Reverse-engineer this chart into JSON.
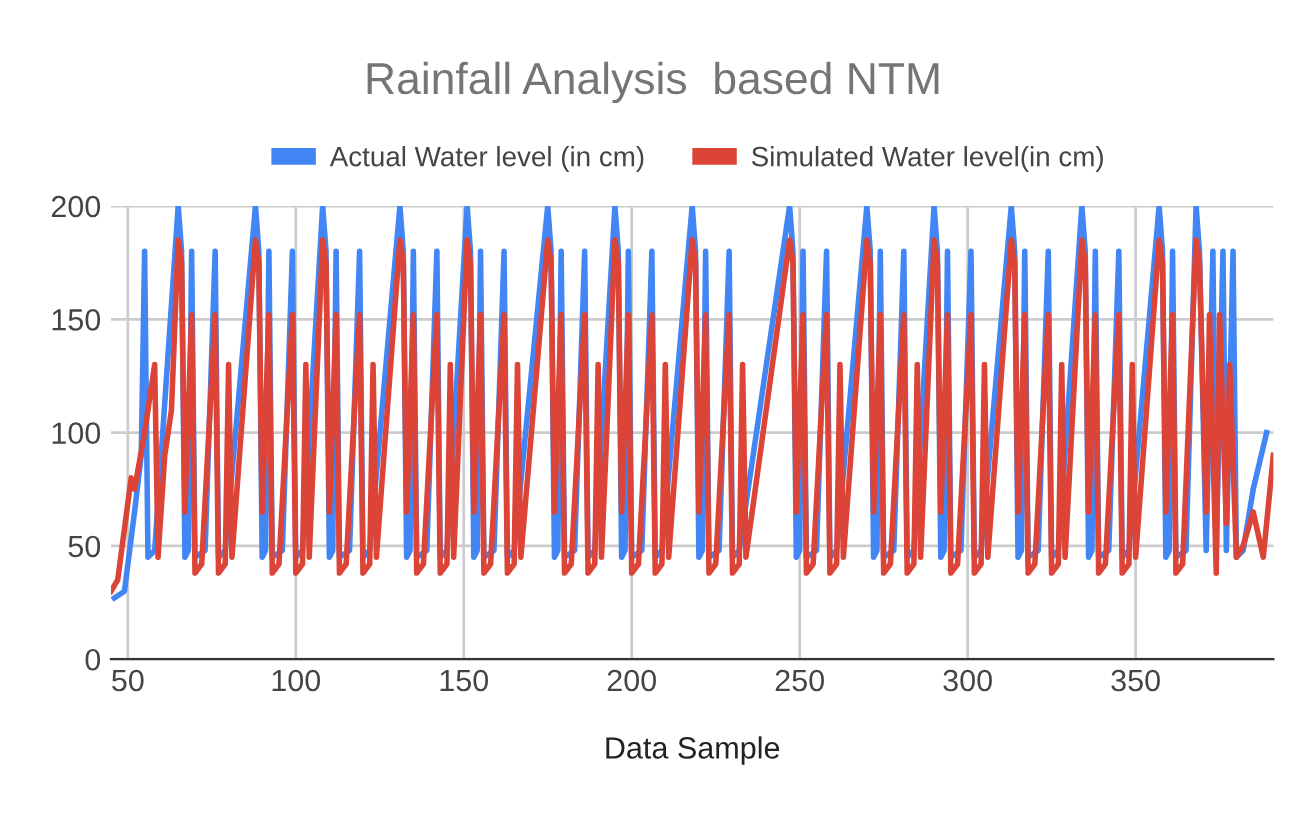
{
  "chart_data": {
    "type": "line",
    "title": "Rainfall Analysis  based NTM",
    "xlabel": "Data Sample",
    "xlim": [
      45,
      391
    ],
    "xticks": [
      50,
      100,
      150,
      200,
      250,
      300,
      350
    ],
    "ylim": [
      0,
      200
    ],
    "yticks": [
      0,
      50,
      100,
      150,
      200
    ],
    "grid": true,
    "legend": "top",
    "marker": "none",
    "line_style": "solid",
    "series": [
      {
        "name": "Actual Water level (in cm)",
        "color": "#4285f4",
        "x": [
          46,
          49,
          52,
          54,
          55,
          56,
          58,
          65,
          66,
          67,
          68,
          69,
          70,
          73,
          76,
          77,
          79,
          88,
          89,
          90,
          91,
          92,
          93,
          96,
          99,
          100,
          102,
          108,
          109,
          110,
          111,
          112,
          113,
          116,
          119,
          120,
          122,
          131,
          132,
          133,
          134,
          135,
          136,
          139,
          142,
          143,
          145,
          151,
          152,
          153,
          154,
          155,
          156,
          159,
          162,
          163,
          165,
          175,
          176,
          177,
          178,
          179,
          180,
          183,
          186,
          187,
          189,
          195,
          196,
          197,
          198,
          199,
          200,
          203,
          206,
          207,
          209,
          218,
          219,
          220,
          221,
          222,
          223,
          226,
          229,
          230,
          232,
          247,
          248,
          249,
          250,
          251,
          252,
          255,
          258,
          259,
          261,
          270,
          271,
          272,
          273,
          274,
          275,
          278,
          281,
          282,
          284,
          290,
          291,
          292,
          293,
          294,
          295,
          298,
          301,
          302,
          304,
          313,
          314,
          315,
          316,
          317,
          318,
          321,
          324,
          325,
          327,
          334,
          335,
          336,
          337,
          338,
          339,
          342,
          345,
          346,
          348,
          357,
          358,
          359,
          360,
          361,
          362,
          365,
          368,
          369,
          371,
          373,
          374,
          376,
          377,
          379,
          380,
          382,
          385,
          389
        ],
        "values": [
          27,
          30,
          65,
          90,
          180,
          45,
          48,
          200,
          180,
          45,
          48,
          180,
          45,
          48,
          180,
          45,
          48,
          200,
          180,
          45,
          48,
          180,
          45,
          48,
          180,
          45,
          48,
          200,
          180,
          45,
          48,
          180,
          45,
          48,
          180,
          45,
          48,
          200,
          180,
          45,
          48,
          180,
          45,
          48,
          180,
          45,
          48,
          200,
          180,
          45,
          48,
          180,
          45,
          48,
          180,
          45,
          48,
          200,
          180,
          45,
          48,
          180,
          45,
          48,
          180,
          45,
          48,
          200,
          180,
          45,
          48,
          180,
          45,
          48,
          180,
          45,
          48,
          200,
          180,
          45,
          48,
          180,
          45,
          48,
          180,
          45,
          48,
          200,
          180,
          45,
          48,
          180,
          45,
          48,
          180,
          45,
          48,
          200,
          180,
          45,
          48,
          180,
          45,
          48,
          180,
          45,
          48,
          200,
          180,
          45,
          48,
          180,
          45,
          48,
          180,
          45,
          48,
          200,
          180,
          45,
          48,
          180,
          45,
          48,
          180,
          45,
          48,
          200,
          180,
          45,
          48,
          180,
          45,
          48,
          180,
          45,
          48,
          200,
          180,
          45,
          48,
          180,
          45,
          48,
          200,
          180,
          48,
          180,
          48,
          180,
          48,
          180,
          45,
          48,
          75,
          100
        ]
      },
      {
        "name": "Simulated Water level(in cm)",
        "color": "#db4437",
        "x": [
          45,
          47,
          51,
          52,
          55,
          58,
          59,
          61,
          63,
          65,
          66,
          67,
          69,
          70,
          72,
          76,
          77,
          79,
          80,
          81,
          88,
          89,
          90,
          92,
          93,
          95,
          99,
          100,
          102,
          103,
          104,
          108,
          109,
          110,
          112,
          113,
          115,
          119,
          120,
          122,
          123,
          124,
          131,
          132,
          133,
          135,
          136,
          138,
          142,
          143,
          145,
          146,
          147,
          151,
          152,
          153,
          155,
          156,
          158,
          162,
          163,
          165,
          166,
          167,
          175,
          176,
          177,
          179,
          180,
          182,
          186,
          187,
          189,
          190,
          191,
          195,
          196,
          197,
          199,
          200,
          202,
          206,
          207,
          209,
          210,
          211,
          218,
          219,
          220,
          222,
          223,
          225,
          229,
          230,
          232,
          233,
          234,
          247,
          248,
          249,
          251,
          252,
          254,
          258,
          259,
          261,
          262,
          263,
          270,
          271,
          272,
          274,
          275,
          277,
          281,
          282,
          284,
          285,
          286,
          290,
          291,
          292,
          294,
          295,
          297,
          301,
          302,
          304,
          305,
          306,
          313,
          314,
          315,
          317,
          318,
          320,
          324,
          325,
          327,
          328,
          329,
          334,
          335,
          336,
          338,
          339,
          341,
          345,
          346,
          348,
          349,
          350,
          357,
          358,
          359,
          361,
          362,
          364,
          368,
          369,
          371,
          372,
          374,
          375,
          377,
          378,
          380,
          382,
          385,
          388,
          391
        ],
        "values": [
          30,
          35,
          80,
          75,
          100,
          130,
          45,
          90,
          110,
          185,
          175,
          65,
          152,
          38,
          42,
          152,
          38,
          42,
          130,
          45,
          185,
          175,
          65,
          152,
          38,
          42,
          152,
          38,
          42,
          130,
          45,
          185,
          175,
          65,
          152,
          38,
          42,
          152,
          38,
          42,
          130,
          45,
          185,
          175,
          65,
          152,
          38,
          42,
          152,
          38,
          42,
          130,
          45,
          185,
          175,
          65,
          152,
          38,
          42,
          152,
          38,
          42,
          130,
          45,
          185,
          175,
          65,
          152,
          38,
          42,
          152,
          38,
          42,
          130,
          45,
          185,
          175,
          65,
          152,
          38,
          42,
          152,
          38,
          42,
          130,
          45,
          185,
          175,
          65,
          152,
          38,
          42,
          152,
          38,
          42,
          130,
          45,
          185,
          175,
          65,
          152,
          38,
          42,
          152,
          38,
          42,
          130,
          45,
          185,
          175,
          65,
          152,
          38,
          42,
          152,
          38,
          42,
          130,
          45,
          185,
          175,
          65,
          152,
          38,
          42,
          152,
          38,
          42,
          130,
          45,
          185,
          175,
          65,
          152,
          38,
          42,
          152,
          38,
          42,
          130,
          45,
          185,
          175,
          65,
          152,
          38,
          42,
          152,
          38,
          42,
          130,
          45,
          185,
          175,
          65,
          152,
          38,
          42,
          185,
          175,
          65,
          152,
          38,
          152,
          60,
          130,
          45,
          50,
          65,
          45,
          90
        ]
      }
    ]
  }
}
